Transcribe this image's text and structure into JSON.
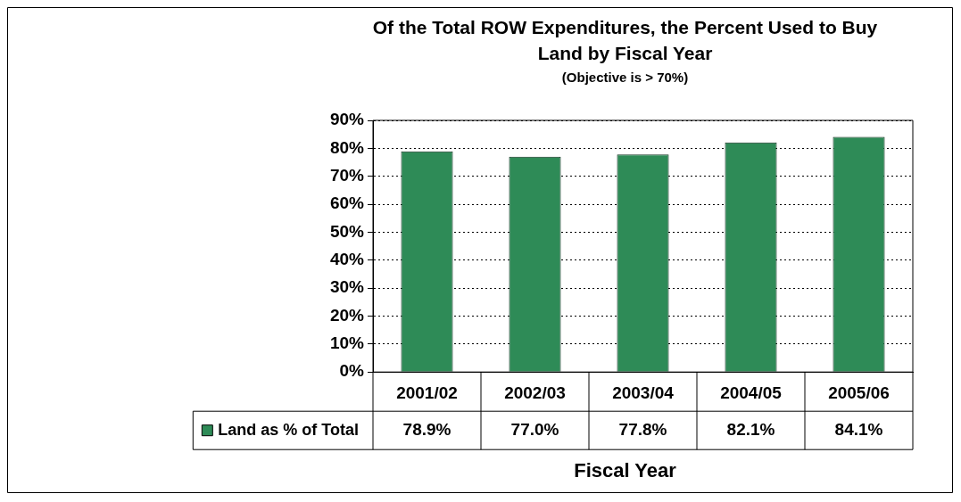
{
  "chart_data": {
    "type": "bar",
    "title": "Of the Total ROW Expenditures, the Percent Used to Buy Land by Fiscal Year",
    "subtitle": "(Objective is > 70%)",
    "xlabel": "Fiscal Year",
    "categories": [
      "2001/02",
      "2002/03",
      "2003/04",
      "2004/05",
      "2005/06"
    ],
    "series": [
      {
        "name": "Land as % of Total",
        "color": "#2e8b57",
        "values": [
          78.9,
          77.0,
          77.8,
          82.1,
          84.1
        ]
      }
    ],
    "value_labels": [
      "78.9%",
      "77.0%",
      "77.8%",
      "82.1%",
      "84.1%"
    ],
    "ylim": [
      0,
      90
    ],
    "yticks": [
      {
        "value": 0,
        "label": "0%"
      },
      {
        "value": 10,
        "label": "10%"
      },
      {
        "value": 20,
        "label": "20%"
      },
      {
        "value": 30,
        "label": "30%"
      },
      {
        "value": 40,
        "label": "40%"
      },
      {
        "value": 50,
        "label": "50%"
      },
      {
        "value": 60,
        "label": "60%"
      },
      {
        "value": 70,
        "label": "70%"
      },
      {
        "value": 80,
        "label": "80%"
      },
      {
        "value": 90,
        "label": "90%"
      }
    ],
    "grid": "y",
    "legend": "bottom"
  }
}
